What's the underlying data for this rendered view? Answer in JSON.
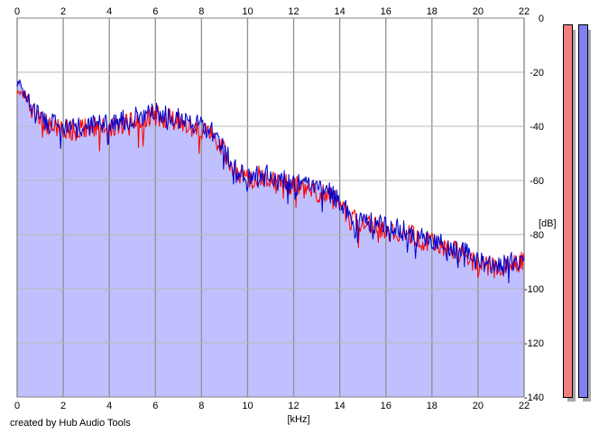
{
  "app": {
    "credit": "created by Hub Audio Tools"
  },
  "chart_data": {
    "type": "area",
    "title": "",
    "xlabel": "[kHz]",
    "ylabel": "[dB]",
    "xlim": [
      0,
      22
    ],
    "ylim": [
      -140,
      0
    ],
    "x_ticks": [
      0,
      2,
      4,
      6,
      8,
      10,
      12,
      14,
      16,
      18,
      20,
      22
    ],
    "y_ticks": [
      0,
      -20,
      -40,
      -60,
      -80,
      -100,
      -120,
      -140
    ],
    "grid": true,
    "series": [
      {
        "color": "#ff0000",
        "x": [
          0,
          0.2,
          0.5,
          0.8,
          1.0,
          1.5,
          2.0,
          2.5,
          3.0,
          3.5,
          4.0,
          4.5,
          5.0,
          5.5,
          6.0,
          6.5,
          7.0,
          7.5,
          8.0,
          8.5,
          9.0,
          9.5,
          10.0,
          10.5,
          11.0,
          11.5,
          12.0,
          12.5,
          13.0,
          13.5,
          14.0,
          14.5,
          15.0,
          15.5,
          16.0,
          16.5,
          17.0,
          17.5,
          18.0,
          18.5,
          19.0,
          19.5,
          20.0,
          20.5,
          21.0,
          21.5,
          22.0
        ],
        "values": [
          -24,
          -26,
          -32,
          -36,
          -38,
          -40,
          -41,
          -42,
          -41,
          -40,
          -40,
          -39,
          -38,
          -37,
          -36,
          -37,
          -38,
          -40,
          -41,
          -43,
          -50,
          -57,
          -60,
          -58,
          -59,
          -61,
          -62,
          -63,
          -64,
          -65,
          -69,
          -74,
          -76,
          -77,
          -78,
          -79,
          -80,
          -82,
          -83,
          -84,
          -86,
          -88,
          -91,
          -92,
          -93,
          -91,
          -90
        ]
      },
      {
        "color": "#0000cc",
        "x": [
          0,
          0.2,
          0.5,
          0.8,
          1.0,
          1.5,
          2.0,
          2.5,
          3.0,
          3.5,
          4.0,
          4.5,
          5.0,
          5.5,
          6.0,
          6.5,
          7.0,
          7.5,
          8.0,
          8.5,
          9.0,
          9.5,
          10.0,
          10.5,
          11.0,
          11.5,
          12.0,
          12.5,
          13.0,
          13.5,
          14.0,
          14.5,
          15.0,
          15.5,
          16.0,
          16.5,
          17.0,
          17.5,
          18.0,
          18.5,
          19.0,
          19.5,
          20.0,
          20.5,
          21.0,
          21.5,
          22.0
        ],
        "values": [
          -22,
          -25,
          -31,
          -35,
          -37,
          -39,
          -40,
          -41,
          -40,
          -39,
          -39,
          -38,
          -37,
          -36,
          -35,
          -36,
          -37,
          -39,
          -40,
          -42,
          -49,
          -56,
          -59,
          -57,
          -58,
          -60,
          -61,
          -62,
          -63,
          -64,
          -68,
          -73,
          -75,
          -76,
          -77,
          -78,
          -79,
          -81,
          -82,
          -83,
          -85,
          -87,
          -90,
          -91,
          -92,
          -90,
          -89
        ]
      }
    ],
    "fill_color": "#c0c0ff",
    "meters": [
      {
        "color": "#f08080"
      },
      {
        "color": "#8080f0"
      }
    ]
  }
}
